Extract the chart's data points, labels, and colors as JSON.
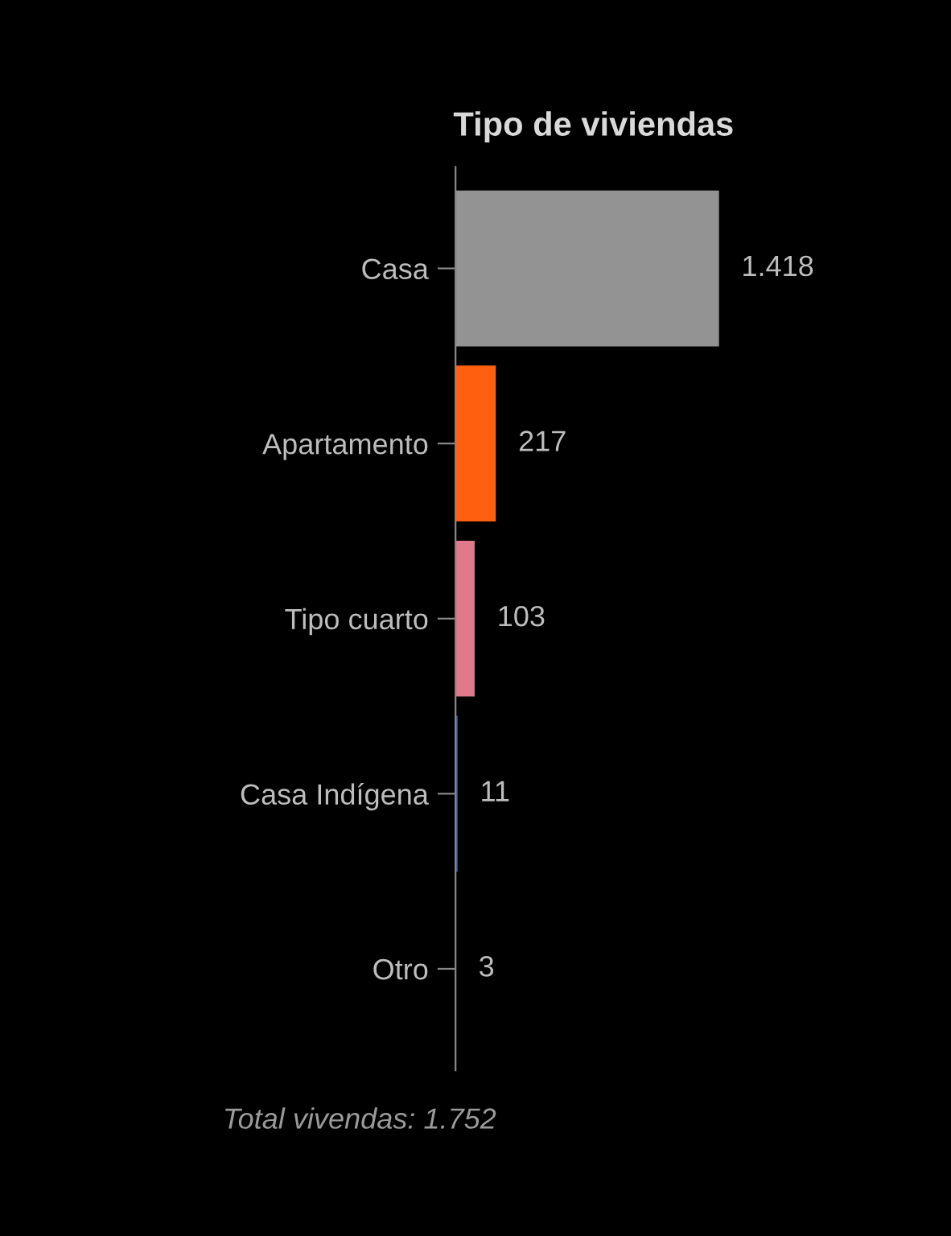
{
  "chart_data": {
    "type": "bar",
    "orientation": "horizontal",
    "title": "Tipo de viviendas",
    "categories": [
      "Casa",
      "Apartamento",
      "Tipo cuarto",
      "Casa Indígena",
      "Otro"
    ],
    "values": [
      1418,
      217,
      103,
      11,
      3
    ],
    "colors": [
      "#939393",
      "#ff5f0f",
      "#e07a8a",
      "#3a5fa8",
      "#bbbbbb"
    ],
    "value_labels": [
      "1.418",
      "217",
      "103",
      "11",
      "3"
    ],
    "annotations": [
      "Total vivendas: 1.752"
    ],
    "grid": false,
    "legend": false
  }
}
